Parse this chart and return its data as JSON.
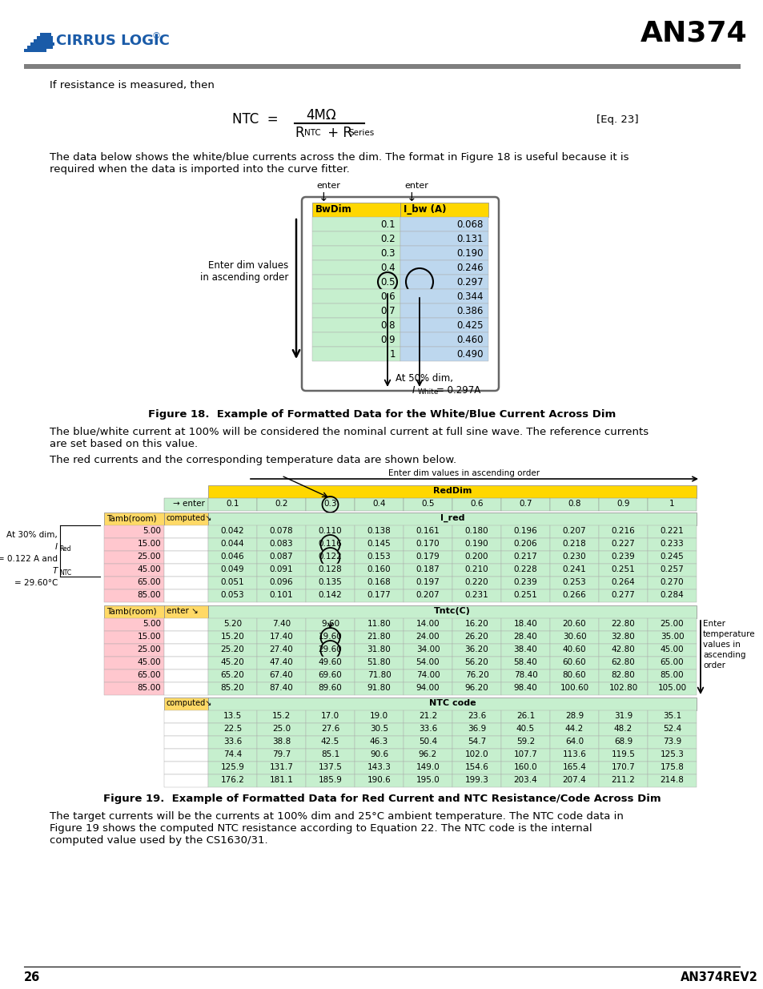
{
  "title": "AN374",
  "page_number": "26",
  "page_ref": "AN374REV2",
  "header_text": "If resistance is measured, then",
  "equation_label": "[Eq. 23]",
  "para1_line1": "The data below shows the white/blue currents across the dim. The format in Figure 18 is useful because it is",
  "para1_line2": "required when the data is imported into the curve fitter.",
  "fig18_caption": "Figure 18.  Example of Formatted Data for the White/Blue Current Across Dim",
  "para2_line1": "The blue/white current at 100% will be considered the nominal current at full sine wave. The reference currents",
  "para2_line2": "are set based on this value.",
  "para3": "The red currents and the corresponding temperature data are shown below.",
  "fig19_caption": "Figure 19.  Example of Formatted Data for Red Current and NTC Resistance/Code Across Dim",
  "para4_line1": "The target currents will be the currents at 100% dim and 25°C ambient temperature. The NTC code data in",
  "para4_line2": "Figure 19 shows the computed NTC resistance according to Equation 22. The NTC code is the internal",
  "para4_line3": "computed value used by the CS1630/31.",
  "bwdim_values": [
    "0.1",
    "0.2",
    "0.3",
    "0.4",
    "0.5",
    "0.6",
    "0.7",
    "0.8",
    "0.9",
    "1"
  ],
  "ibw_values": [
    "0.068",
    "0.131",
    "0.190",
    "0.246",
    "0.297",
    "0.344",
    "0.386",
    "0.425",
    "0.460",
    "0.490"
  ],
  "color_yellow": "#FFD700",
  "color_green": "#C6EFCE",
  "color_blue_light": "#BDD7EE",
  "color_orange": "#FFD966",
  "color_salmon": "#FFC7CE",
  "red_dim_cols": [
    "0.1",
    "0.2",
    "0.3",
    "0.4",
    "0.5",
    "0.6",
    "0.7",
    "0.8",
    "0.9",
    "1"
  ],
  "tamb_rows": [
    "5.00",
    "15.00",
    "25.00",
    "45.00",
    "65.00",
    "85.00"
  ],
  "ired_data": [
    [
      "0.042",
      "0.078",
      "0.110",
      "0.138",
      "0.161",
      "0.180",
      "0.196",
      "0.207",
      "0.216",
      "0.221"
    ],
    [
      "0.044",
      "0.083",
      "0.116",
      "0.145",
      "0.170",
      "0.190",
      "0.206",
      "0.218",
      "0.227",
      "0.233"
    ],
    [
      "0.046",
      "0.087",
      "0.122",
      "0.153",
      "0.179",
      "0.200",
      "0.217",
      "0.230",
      "0.239",
      "0.245"
    ],
    [
      "0.049",
      "0.091",
      "0.128",
      "0.160",
      "0.187",
      "0.210",
      "0.228",
      "0.241",
      "0.251",
      "0.257"
    ],
    [
      "0.051",
      "0.096",
      "0.135",
      "0.168",
      "0.197",
      "0.220",
      "0.239",
      "0.253",
      "0.264",
      "0.270"
    ],
    [
      "0.053",
      "0.101",
      "0.142",
      "0.177",
      "0.207",
      "0.231",
      "0.251",
      "0.266",
      "0.277",
      "0.284"
    ]
  ],
  "tntc_data": [
    [
      "5.20",
      "7.40",
      "9.60",
      "11.80",
      "14.00",
      "16.20",
      "18.40",
      "20.60",
      "22.80",
      "25.00"
    ],
    [
      "15.20",
      "17.40",
      "19.60",
      "21.80",
      "24.00",
      "26.20",
      "28.40",
      "30.60",
      "32.80",
      "35.00"
    ],
    [
      "25.20",
      "27.40",
      "29.60",
      "31.80",
      "34.00",
      "36.20",
      "38.40",
      "40.60",
      "42.80",
      "45.00"
    ],
    [
      "45.20",
      "47.40",
      "49.60",
      "51.80",
      "54.00",
      "56.20",
      "58.40",
      "60.60",
      "62.80",
      "65.00"
    ],
    [
      "65.20",
      "67.40",
      "69.60",
      "71.80",
      "74.00",
      "76.20",
      "78.40",
      "80.60",
      "82.80",
      "85.00"
    ],
    [
      "85.20",
      "87.40",
      "89.60",
      "91.80",
      "94.00",
      "96.20",
      "98.40",
      "100.60",
      "102.80",
      "105.00"
    ]
  ],
  "ntc_data": [
    [
      "13.5",
      "15.2",
      "17.0",
      "19.0",
      "21.2",
      "23.6",
      "26.1",
      "28.9",
      "31.9",
      "35.1"
    ],
    [
      "22.5",
      "25.0",
      "27.6",
      "30.5",
      "33.6",
      "36.9",
      "40.5",
      "44.2",
      "48.2",
      "52.4"
    ],
    [
      "33.6",
      "38.8",
      "42.5",
      "46.3",
      "50.4",
      "54.7",
      "59.2",
      "64.0",
      "68.9",
      "73.9"
    ],
    [
      "74.4",
      "79.7",
      "85.1",
      "90.6",
      "96.2",
      "102.0",
      "107.7",
      "113.6",
      "119.5",
      "125.3"
    ],
    [
      "125.9",
      "131.7",
      "137.5",
      "143.3",
      "149.0",
      "154.6",
      "160.0",
      "165.4",
      "170.7",
      "175.8"
    ],
    [
      "176.2",
      "181.1",
      "185.9",
      "190.6",
      "195.0",
      "199.3",
      "203.4",
      "207.4",
      "211.2",
      "214.8"
    ]
  ]
}
